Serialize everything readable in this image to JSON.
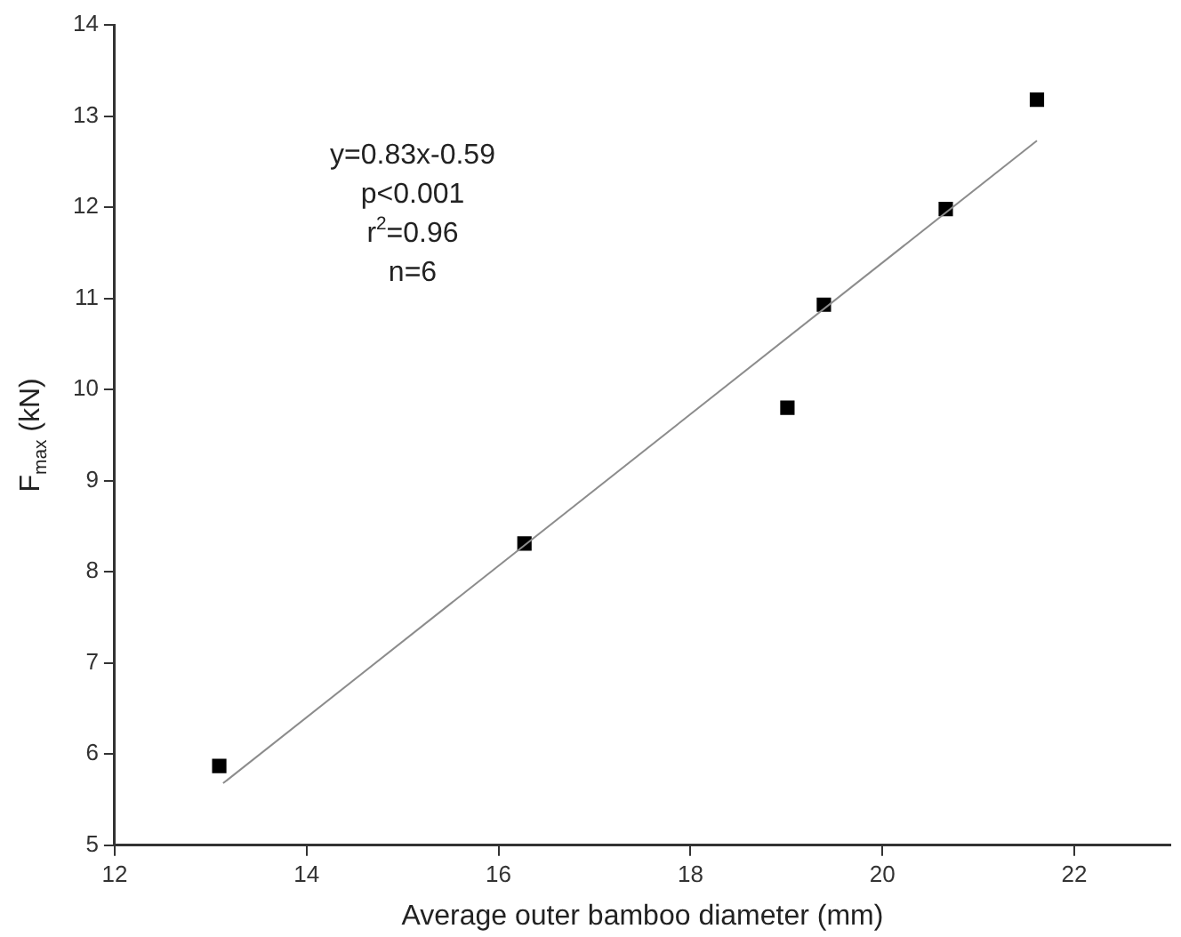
{
  "chart_data": {
    "type": "scatter",
    "xlabel": "Average outer bamboo diameter (mm)",
    "ylabel": "F$_{max}$ (kN)",
    "annotations": [
      "y=0.83x-0.59",
      "p<0.001",
      "r$^{2}$=0.96",
      "n=6"
    ],
    "series": [
      {
        "type": "scatter",
        "color": "#000000",
        "marker": "square",
        "x": [
          13.09,
          16.27,
          19.01,
          19.39,
          20.66,
          21.61
        ],
        "values": [
          5.87,
          8.31,
          9.8,
          10.93,
          11.98,
          13.18
        ]
      },
      {
        "type": "line",
        "color": "#8c8c8c",
        "marker": "none",
        "line_style": "solid",
        "x": [
          13.13,
          21.61
        ],
        "values": [
          5.68,
          12.73
        ]
      }
    ],
    "xlim": [
      12,
      23
    ],
    "xticks": [
      12,
      14,
      16,
      18,
      20,
      22
    ],
    "ylim": [
      5,
      14
    ],
    "yticks": [
      5,
      6,
      7,
      8,
      9,
      10,
      11,
      12,
      13,
      14
    ],
    "grid": false,
    "legend": false
  }
}
